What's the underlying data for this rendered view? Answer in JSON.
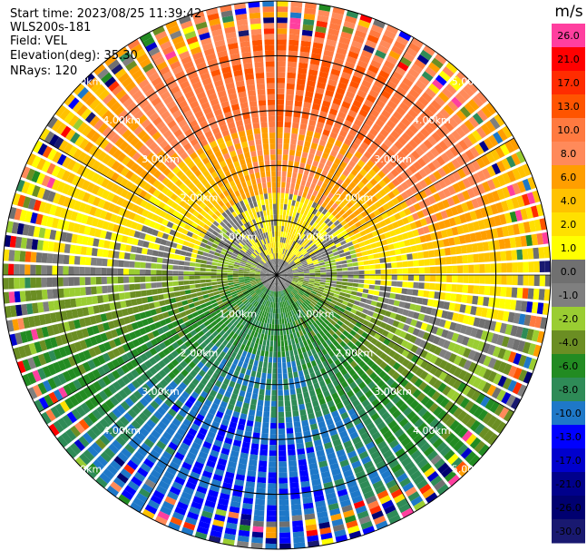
{
  "info": {
    "start_time": "Start time: 2023/08/25 11:39:42",
    "instrument": "WLS200s-181",
    "field": "Field: VEL",
    "elevation": "Elevation(deg): 35.30",
    "nrays": "NRays: 120"
  },
  "chart_data": {
    "type": "heatmap",
    "projection": "polar-ppi",
    "title": "",
    "field": "VEL",
    "units": "m/s",
    "n_rays": 120,
    "max_range_km": 5.0,
    "range_ring_labels": [
      "1.00km",
      "2.00km",
      "3.00km",
      "4.00km",
      "5.00km"
    ],
    "range_rings_km": [
      1,
      2,
      3,
      4,
      5
    ],
    "spoke_angles_deg": [
      0,
      30,
      60,
      90,
      120,
      150,
      180,
      210,
      240,
      270,
      300,
      330
    ],
    "colorbar": {
      "label": "m/s",
      "ticks": [
        "26.0",
        "21.0",
        "17.0",
        "13.0",
        "10.0",
        "8.0",
        "6.0",
        "4.0",
        "2.0",
        "1.0",
        "0.0",
        "-1.0",
        "-2.0",
        "-4.0",
        "-6.0",
        "-8.0",
        "-10.0",
        "-13.0",
        "-17.0",
        "-21.0",
        "-26.0",
        "-30.0"
      ],
      "colors": [
        "#ff3f9f",
        "#ff0000",
        "#ff2c00",
        "#ff5400",
        "#ff7a40",
        "#ff8a5a",
        "#ff9e00",
        "#ffc200",
        "#ffe000",
        "#ffff00",
        "#707070",
        "#7f7f7f",
        "#9acd32",
        "#6b8e23",
        "#228b22",
        "#2e8b57",
        "#1e78c8",
        "#0000ff",
        "#0000cd",
        "#00008b",
        "#000070",
        "#191970"
      ]
    },
    "velocity_pattern": {
      "description_free": true,
      "bands": [
        {
          "range_km": [
            0.0,
            0.3
          ],
          "value": 0.0
        },
        {
          "range_km": [
            0.3,
            1.5
          ],
          "north_value": 2.0,
          "south_value": -6.0
        },
        {
          "range_km": [
            1.5,
            2.7
          ],
          "north_value": 8.0,
          "south_value": -8.0
        },
        {
          "range_km": [
            2.7,
            4.3
          ],
          "north_value": 13.0,
          "south_value": -10.0
        },
        {
          "range_km": [
            4.3,
            5.0
          ],
          "north_value": 10.0,
          "south_value": -10.0
        }
      ]
    }
  }
}
